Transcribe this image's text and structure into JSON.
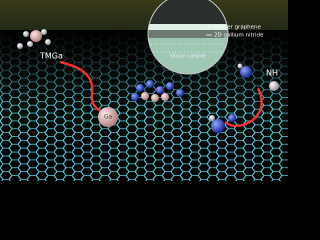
{
  "labels": {
    "precursor_left": "TMGa",
    "precursor_right": "NH",
    "atom_ga": "Ga"
  },
  "inset": {
    "layers": [
      "bilayer graphene",
      "2D gallium nitride",
      "silicon carbide"
    ]
  }
}
